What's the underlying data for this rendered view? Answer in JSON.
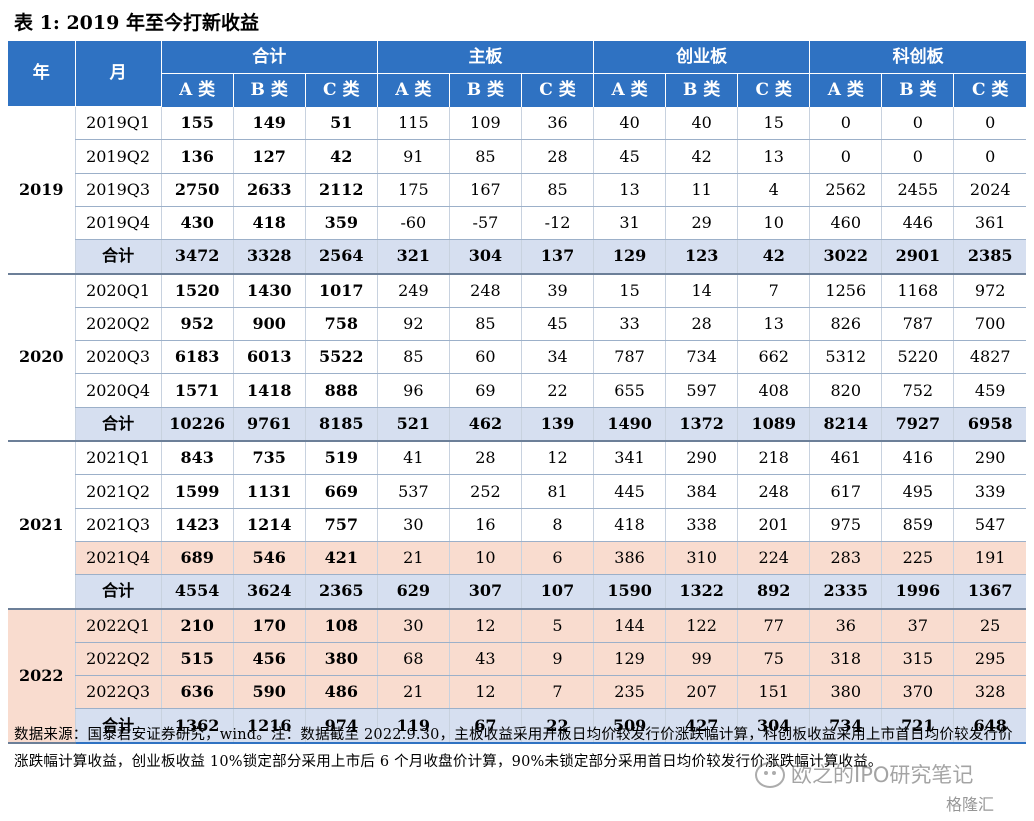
{
  "title": "表 1: 2019 年至今打新收益",
  "header": {
    "year_label": "年",
    "month_label": "月",
    "groups": [
      "合计",
      "主板",
      "创业板",
      "科创板"
    ],
    "sub": [
      "A 类",
      "B 类",
      "C 类"
    ]
  },
  "years": [
    {
      "year": "2019",
      "rows": [
        {
          "label": "2019Q1",
          "values": [
            "155",
            "149",
            "51",
            "115",
            "109",
            "36",
            "40",
            "40",
            "15",
            "0",
            "0",
            "0"
          ]
        },
        {
          "label": "2019Q2",
          "values": [
            "136",
            "127",
            "42",
            "91",
            "85",
            "28",
            "45",
            "42",
            "13",
            "0",
            "0",
            "0"
          ]
        },
        {
          "label": "2019Q3",
          "values": [
            "2750",
            "2633",
            "2112",
            "175",
            "167",
            "85",
            "13",
            "11",
            "4",
            "2562",
            "2455",
            "2024"
          ]
        },
        {
          "label": "2019Q4",
          "values": [
            "430",
            "418",
            "359",
            "-60",
            "-57",
            "-12",
            "31",
            "29",
            "10",
            "460",
            "446",
            "361"
          ]
        }
      ],
      "total": {
        "label": "合计",
        "values": [
          "3472",
          "3328",
          "2564",
          "321",
          "304",
          "137",
          "129",
          "123",
          "42",
          "3022",
          "2901",
          "2385"
        ]
      }
    },
    {
      "year": "2020",
      "rows": [
        {
          "label": "2020Q1",
          "values": [
            "1520",
            "1430",
            "1017",
            "249",
            "248",
            "39",
            "15",
            "14",
            "7",
            "1256",
            "1168",
            "972"
          ]
        },
        {
          "label": "2020Q2",
          "values": [
            "952",
            "900",
            "758",
            "92",
            "85",
            "45",
            "33",
            "28",
            "13",
            "826",
            "787",
            "700"
          ]
        },
        {
          "label": "2020Q3",
          "values": [
            "6183",
            "6013",
            "5522",
            "85",
            "60",
            "34",
            "787",
            "734",
            "662",
            "5312",
            "5220",
            "4827"
          ]
        },
        {
          "label": "2020Q4",
          "values": [
            "1571",
            "1418",
            "888",
            "96",
            "69",
            "22",
            "655",
            "597",
            "408",
            "820",
            "752",
            "459"
          ]
        }
      ],
      "total": {
        "label": "合计",
        "values": [
          "10226",
          "9761",
          "8185",
          "521",
          "462",
          "139",
          "1490",
          "1372",
          "1089",
          "8214",
          "7927",
          "6958"
        ]
      }
    },
    {
      "year": "2021",
      "rows": [
        {
          "label": "2021Q1",
          "values": [
            "843",
            "735",
            "519",
            "41",
            "28",
            "12",
            "341",
            "290",
            "218",
            "461",
            "416",
            "290"
          ]
        },
        {
          "label": "2021Q2",
          "values": [
            "1599",
            "1131",
            "669",
            "537",
            "252",
            "81",
            "445",
            "384",
            "248",
            "617",
            "495",
            "339"
          ]
        },
        {
          "label": "2021Q3",
          "values": [
            "1423",
            "1214",
            "757",
            "30",
            "16",
            "8",
            "418",
            "338",
            "201",
            "975",
            "859",
            "547"
          ]
        },
        {
          "label": "2021Q4",
          "values": [
            "689",
            "546",
            "421",
            "21",
            "10",
            "6",
            "386",
            "310",
            "224",
            "283",
            "225",
            "191"
          ],
          "highlight": true
        }
      ],
      "total": {
        "label": "合计",
        "values": [
          "4554",
          "3624",
          "2365",
          "629",
          "307",
          "107",
          "1590",
          "1322",
          "892",
          "2335",
          "1996",
          "1367"
        ]
      }
    },
    {
      "year": "2022",
      "rows": [
        {
          "label": "2022Q1",
          "values": [
            "210",
            "170",
            "108",
            "30",
            "12",
            "5",
            "144",
            "122",
            "77",
            "36",
            "37",
            "25"
          ],
          "highlight": true
        },
        {
          "label": "2022Q2",
          "values": [
            "515",
            "456",
            "380",
            "68",
            "43",
            "9",
            "129",
            "99",
            "75",
            "318",
            "315",
            "295"
          ],
          "highlight": true
        },
        {
          "label": "2022Q3",
          "values": [
            "636",
            "590",
            "486",
            "21",
            "12",
            "7",
            "235",
            "207",
            "151",
            "380",
            "370",
            "328"
          ],
          "highlight": true
        }
      ],
      "total": {
        "label": "合计",
        "values": [
          "1362",
          "1216",
          "974",
          "119",
          "67",
          "22",
          "509",
          "427",
          "304",
          "734",
          "721",
          "648"
        ]
      }
    }
  ],
  "note": "数据来源：国泰君安证券研究，wind。注：数据截至 2022.9.30，主板收益采用开板日均价较发行价涨跌幅计算，科创板收益采用上市首日均价较发行价涨跌幅计算收益，创业板收益 10%锁定部分采用上市后 6 个月收盘价计算，90%未锁定部分采用首日均价较发行价涨跌幅计算收益。",
  "watermark": "欧之的IPO研究笔记",
  "logo": "格隆汇",
  "colors": {
    "header": "#2f72c2",
    "total_row": "#d6dff0",
    "highlight_row": "#f9dccf"
  }
}
